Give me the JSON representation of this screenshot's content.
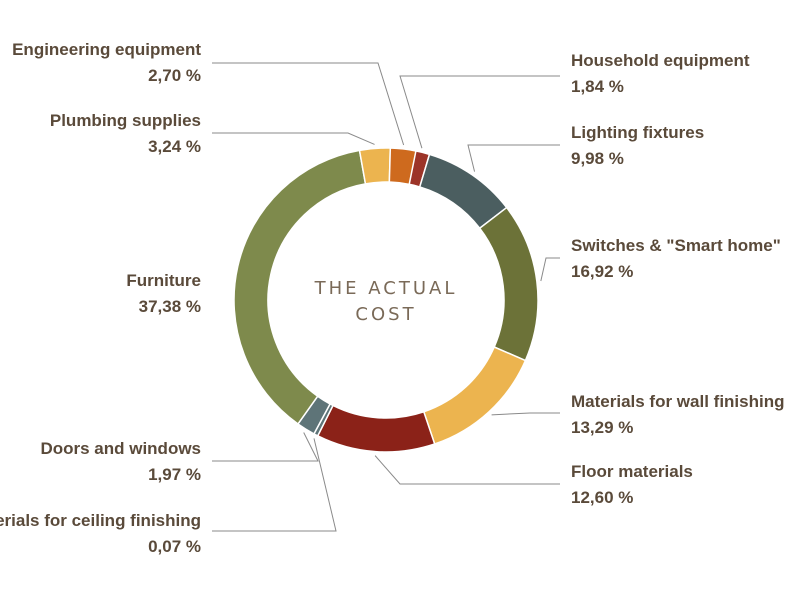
{
  "chart_data": {
    "type": "pie",
    "title_lines": [
      "THE ACTUAL",
      "COST"
    ],
    "slices": [
      {
        "name": "Household equipment",
        "value": 1.84,
        "value_text": "1,84 %",
        "color": "#9c3428"
      },
      {
        "name": "Lighting fixtures",
        "value": 9.98,
        "value_text": "9,98 %",
        "color": "#4b5e60"
      },
      {
        "name": "Switches & \"Smart home\"",
        "value": 16.92,
        "value_text": "16,92 %",
        "color": "#6c7238"
      },
      {
        "name": "Materials for wall finishing",
        "value": 13.29,
        "value_text": "13,29 %",
        "color": "#ecb44f"
      },
      {
        "name": "Floor materials",
        "value": 12.6,
        "value_text": "12,60 %",
        "color": "#8b2218"
      },
      {
        "name": "Materials for ceiling finishing",
        "value": 0.07,
        "value_text": "0,07 %",
        "color": "#5e7478"
      },
      {
        "name": "Doors and windows",
        "value": 1.97,
        "value_text": "1,97 %",
        "color": "#5e7478"
      },
      {
        "name": "Furniture",
        "value": 37.38,
        "value_text": "37,38 %",
        "color": "#7e8a4c"
      },
      {
        "name": "Plumbing supplies",
        "value": 3.24,
        "value_text": "3,24 %",
        "color": "#ecb44f"
      },
      {
        "name": "Engineering equipment",
        "value": 2.7,
        "value_text": "2,70 %",
        "color": "#ce6a1e"
      }
    ]
  }
}
